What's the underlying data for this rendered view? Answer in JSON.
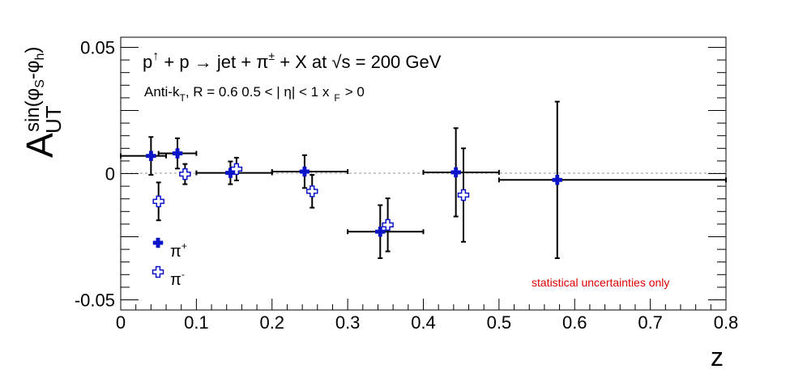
{
  "chart_data": {
    "type": "scatter",
    "reaction": {
      "p": "p",
      "spin_arrow": "↑",
      "plus": "+",
      "p2": "p",
      "arrow": "→",
      "jet": "jet +",
      "pi": "π",
      "pm": "±",
      "x_at": "+ X at",
      "sqrt": "√s",
      "energy": "= 200 GeV"
    },
    "cuts": {
      "anti_k": "Anti-k",
      "sub_T": "T",
      "r": ", R = 0.6   0.5 < | η| < 1   x",
      "sub_F": "F",
      "xf": "> 0"
    },
    "ylabel": {
      "A": "A",
      "sub": "UT",
      "sup": "sin(φ",
      "sup_s": "S",
      "sup_mid": "-φ",
      "sup_h": "h",
      "sup_end": ")"
    },
    "xlabel": "z",
    "annotation": "statistical uncertainties only",
    "annotation_color": "#e00000",
    "xlim": [
      0,
      0.8
    ],
    "ylim": [
      -0.054,
      0.054
    ],
    "x_ticks": [
      "0",
      "0.1",
      "0.2",
      "0.3",
      "0.4",
      "0.5",
      "0.6",
      "0.7",
      "0.8"
    ],
    "y_ticks": [
      "-0.05",
      "0",
      "0.05"
    ],
    "series": [
      {
        "name": "π",
        "name_sup": "+",
        "marker": "filled-cross",
        "color": "#0b14c8",
        "points": [
          {
            "x": 0.04,
            "y": 0.007,
            "xerr": [
              0.0,
              0.06
            ],
            "yerr": 0.0075
          },
          {
            "x": 0.075,
            "y": 0.008,
            "xerr": [
              0.05,
              0.1
            ],
            "yerr": 0.006
          },
          {
            "x": 0.145,
            "y": 0.0003,
            "xerr": [
              0.1,
              0.2
            ],
            "yerr": 0.0045
          },
          {
            "x": 0.243,
            "y": 0.0008,
            "xerr": [
              0.2,
              0.3
            ],
            "yerr": 0.0065
          },
          {
            "x": 0.343,
            "y": -0.023,
            "xerr": [
              0.3,
              0.4
            ],
            "yerr": 0.0105
          },
          {
            "x": 0.443,
            "y": 0.0005,
            "xerr": [
              0.4,
              0.5
            ],
            "yerr": 0.0175
          },
          {
            "x": 0.577,
            "y": -0.0025,
            "xerr": [
              0.5,
              0.8
            ],
            "yerr": 0.031
          }
        ]
      },
      {
        "name": "π",
        "name_sup": "-",
        "marker": "open-cross",
        "color": "#0b14c8",
        "points": [
          {
            "x": 0.05,
            "y": -0.011,
            "yerr": 0.0075
          },
          {
            "x": 0.085,
            "y": -0.0002,
            "yerr": 0.004
          },
          {
            "x": 0.153,
            "y": 0.0018,
            "yerr": 0.0045
          },
          {
            "x": 0.253,
            "y": -0.007,
            "yerr": 0.0065
          },
          {
            "x": 0.353,
            "y": -0.0203,
            "yerr": 0.0105
          },
          {
            "x": 0.453,
            "y": -0.0085,
            "yerr": 0.0185
          }
        ]
      }
    ]
  }
}
